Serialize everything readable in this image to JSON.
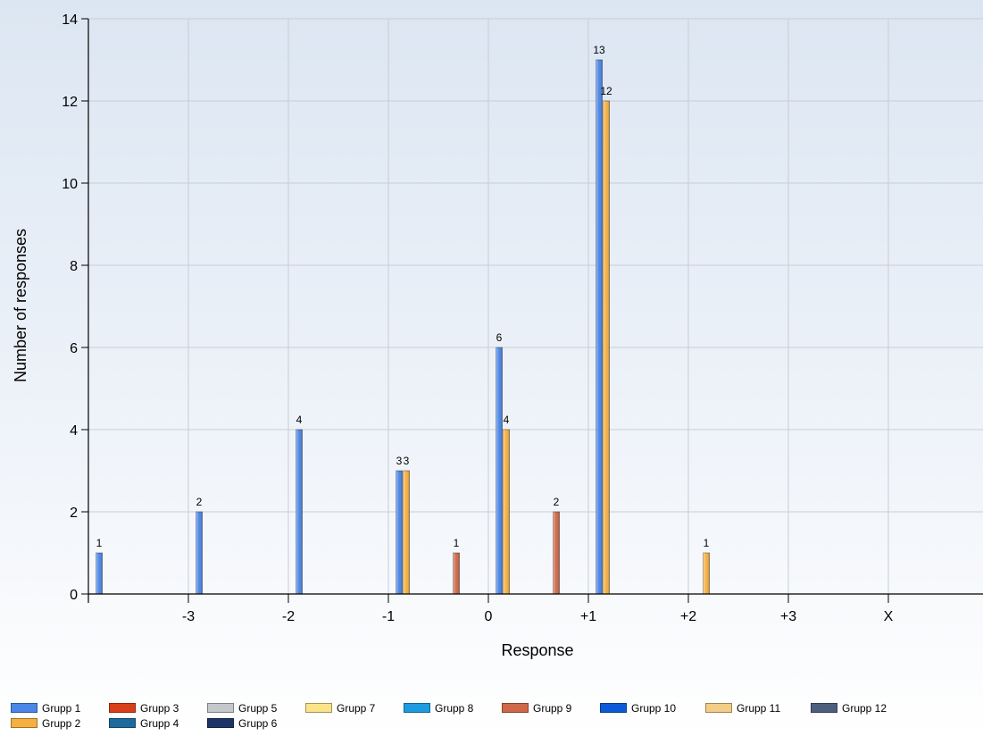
{
  "chart_data": {
    "type": "bar",
    "title": "",
    "xlabel": "Response",
    "ylabel": "Number of responses",
    "ylim": [
      0,
      14
    ],
    "yticks": [
      0,
      2,
      4,
      6,
      8,
      10,
      12,
      14
    ],
    "grid": true,
    "legend_position": "bottom",
    "categories": [
      "-3",
      "-2",
      "-1",
      "0",
      "+1",
      "+2",
      "+3",
      "X"
    ],
    "series": [
      {
        "name": "Grupp 1",
        "color": "#4a86e8",
        "values": [
          1,
          2,
          4,
          3,
          6,
          13,
          null,
          null
        ]
      },
      {
        "name": "Grupp 2",
        "color": "#f6b042",
        "values": [
          null,
          null,
          null,
          3,
          4,
          12,
          1,
          null
        ]
      },
      {
        "name": "Grupp 3",
        "color": "#d9401a",
        "values": [
          null,
          null,
          null,
          null,
          null,
          null,
          null,
          null
        ]
      },
      {
        "name": "Grupp 4",
        "color": "#1d6a9e",
        "values": [
          null,
          null,
          null,
          null,
          null,
          null,
          null,
          null
        ]
      },
      {
        "name": "Grupp 5",
        "color": "#c4c7cc",
        "values": [
          null,
          null,
          null,
          null,
          null,
          null,
          null,
          null
        ]
      },
      {
        "name": "Grupp 6",
        "color": "#1c3566",
        "values": [
          null,
          null,
          null,
          null,
          null,
          null,
          null,
          null
        ]
      },
      {
        "name": "Grupp 7",
        "color": "#fbe38a",
        "values": [
          null,
          null,
          null,
          null,
          null,
          null,
          null,
          null
        ]
      },
      {
        "name": "Grupp 8",
        "color": "#1e9be0",
        "values": [
          null,
          null,
          null,
          null,
          null,
          null,
          null,
          null
        ]
      },
      {
        "name": "Grupp 9",
        "color": "#cf6848",
        "values": [
          null,
          null,
          null,
          1,
          2,
          null,
          null,
          null
        ]
      },
      {
        "name": "Grupp 10",
        "color": "#0b5bd9",
        "values": [
          null,
          null,
          null,
          null,
          null,
          null,
          null,
          null
        ]
      },
      {
        "name": "Grupp 11",
        "color": "#f3cd87",
        "values": [
          null,
          null,
          null,
          null,
          null,
          null,
          null,
          null
        ]
      },
      {
        "name": "Grupp 12",
        "color": "#4e5f7e",
        "values": [
          null,
          null,
          null,
          null,
          null,
          null,
          null,
          null
        ]
      }
    ]
  },
  "legend": {
    "rows": [
      [
        "Grupp 1",
        "Grupp 3",
        "Grupp 5",
        "Grupp 7",
        "Grupp 8",
        "Grupp 9",
        "Grupp 10",
        "Grupp 11",
        "Grupp 12"
      ],
      [
        "Grupp 2",
        "Grupp 4",
        "Grupp 6"
      ]
    ]
  }
}
